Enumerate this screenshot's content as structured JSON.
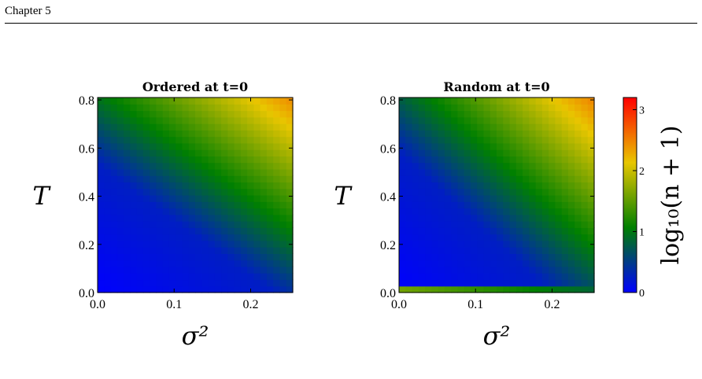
{
  "page": {
    "running_head": "Chapter 5"
  },
  "chart_data": [
    {
      "type": "heatmap",
      "title": "Ordered at t=0",
      "xlabel": "σ²",
      "ylabel": "T",
      "xlim": [
        0.0,
        0.255
      ],
      "ylim": [
        0.0,
        0.81
      ],
      "x_ticks": [
        "0.0",
        "0.1",
        "0.2"
      ],
      "y_ticks": [
        "0.0",
        "0.2",
        "0.4",
        "0.6",
        "0.8"
      ],
      "grid": false,
      "z_description": "log10(n+1) rises from ~0 (lower-left) to ~3.2 (upper-right)",
      "threshold_T_at_sigma2_0": 0.53,
      "threshold_sigma2_at_T_0": 0.23
    },
    {
      "type": "heatmap",
      "title": "Random at t=0",
      "xlabel": "σ²",
      "ylabel": "T",
      "xlim": [
        0.0,
        0.255
      ],
      "ylim": [
        0.0,
        0.81
      ],
      "x_ticks": [
        "0.0",
        "0.1",
        "0.2"
      ],
      "y_ticks": [
        "0.0",
        "0.2",
        "0.4",
        "0.6",
        "0.8"
      ],
      "grid": false,
      "z_description": "log10(n+1) rises from ~0 (lower-left) to ~3.2 (upper-right); bottom row near T=0 stays elevated",
      "threshold_T_at_sigma2_0": 0.58,
      "threshold_sigma2_at_T_0": 0.2
    }
  ],
  "colorbar": {
    "label": "log₁₀(n + 1)",
    "ticks": [
      "0",
      "1",
      "2",
      "3"
    ],
    "range": [
      0,
      3.2
    ],
    "colors": [
      "#0000ff",
      "#008000",
      "#e8c600",
      "#ff0000"
    ]
  }
}
